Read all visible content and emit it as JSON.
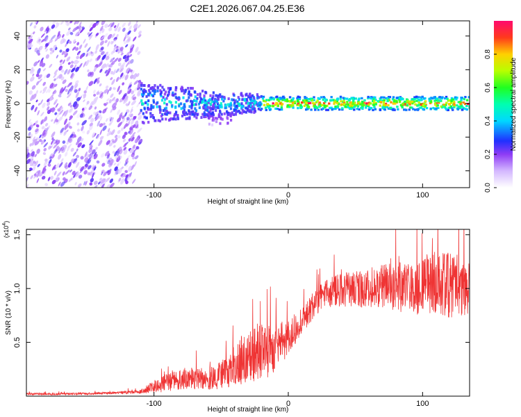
{
  "title": "C2E1.2026.067.04.25.E36",
  "chart_data": [
    {
      "type": "heatmap",
      "name": "spectrogram",
      "xlabel": "Height of straight line (km)",
      "ylabel": "Frequency (Hz)",
      "xlim": [
        -195,
        135
      ],
      "ylim": [
        -50,
        49
      ],
      "xticks": [
        -100,
        0,
        100
      ],
      "yticks": [
        -40,
        -20,
        0,
        20,
        40
      ],
      "colorbar": {
        "label": "Normalized spectral amplitude",
        "range": [
          0,
          1
        ],
        "ticks": [
          0.0,
          0.2,
          0.4,
          0.6,
          0.8
        ],
        "tick_labels": [
          "0.0",
          "0.2",
          "0.4",
          "0.6",
          "0.8"
        ]
      },
      "regions": [
        {
          "x": [
            -195,
            -110
          ],
          "freq_band": [
            -50,
            49
          ],
          "amplitude": [
            0.05,
            0.25
          ],
          "note": "broadband noise"
        },
        {
          "x": [
            -110,
            -20
          ],
          "freq_center": 0,
          "freq_halfwidth": [
            12,
            5
          ],
          "amplitude": [
            0.2,
            0.45
          ]
        },
        {
          "x": [
            -20,
            135
          ],
          "freq_center": 0,
          "freq_halfwidth": 4,
          "amplitude": [
            0.4,
            0.95
          ]
        }
      ]
    },
    {
      "type": "line",
      "name": "snr",
      "xlabel": "Height of straight line (km)",
      "ylabel": "SNR (10 * v/v)",
      "multiplier": "(x10",
      "multiplier_exp": "4",
      "xlim": [
        -195,
        135
      ],
      "ylim": [
        0,
        1.55
      ],
      "xticks": [
        -100,
        0,
        100
      ],
      "yticks": [
        0.5,
        1.0,
        1.5
      ],
      "ytick_labels": [
        "0.5",
        "1.0",
        "1.5"
      ],
      "color": "#ef3434",
      "series": [
        {
          "name": "SNR",
          "x": [
            -195,
            -160,
            -130,
            -110,
            -102,
            -90,
            -75,
            -60,
            -45,
            -35,
            -25,
            -15,
            -5,
            5,
            15,
            25,
            35,
            50,
            70,
            90,
            110,
            125,
            135
          ],
          "mean": [
            0.02,
            0.02,
            0.03,
            0.04,
            0.08,
            0.13,
            0.17,
            0.16,
            0.22,
            0.33,
            0.4,
            0.42,
            0.5,
            0.63,
            0.78,
            0.92,
            0.98,
            0.99,
            1.02,
            1.01,
            1.05,
            1.02,
            0.98
          ],
          "amp": [
            0.01,
            0.01,
            0.01,
            0.02,
            0.05,
            0.09,
            0.1,
            0.1,
            0.15,
            0.22,
            0.28,
            0.25,
            0.2,
            0.15,
            0.12,
            0.13,
            0.15,
            0.17,
            0.2,
            0.25,
            0.3,
            0.3,
            0.28
          ]
        }
      ]
    }
  ]
}
